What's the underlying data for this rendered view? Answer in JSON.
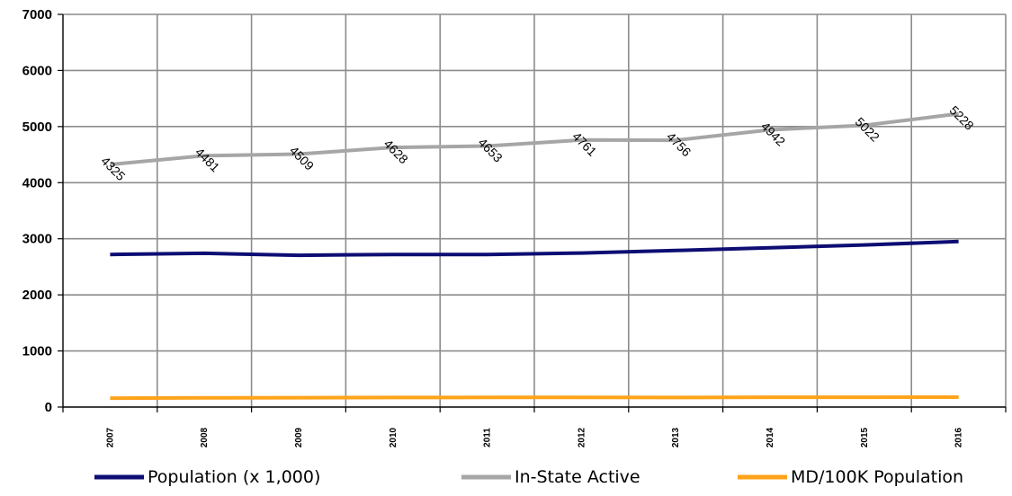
{
  "chart_data": {
    "type": "line",
    "title": "",
    "xlabel": "",
    "ylabel": "",
    "x": [
      "2007",
      "2008",
      "2009",
      "2010",
      "2011",
      "2012",
      "2013",
      "2014",
      "2015",
      "2016"
    ],
    "ylim": [
      0,
      7000
    ],
    "yticks": [
      0,
      1000,
      2000,
      3000,
      4000,
      5000,
      6000,
      7000
    ],
    "grid": true,
    "legend_position": "bottom",
    "series": [
      {
        "name": "Population (x 1,000)",
        "color": "#0d0d73",
        "values": [
          2720,
          2740,
          2705,
          2720,
          2720,
          2745,
          2790,
          2840,
          2890,
          2950
        ],
        "data_labels": false
      },
      {
        "name": "In-State Active",
        "color": "#a6a6a6",
        "values": [
          4325,
          4481,
          4509,
          4628,
          4653,
          4761,
          4756,
          4942,
          5022,
          5228
        ],
        "data_labels": true
      },
      {
        "name": "MD/100K Population",
        "color": "#ffa31a",
        "values": [
          159,
          163,
          166,
          170,
          171,
          173,
          170,
          174,
          174,
          177
        ],
        "data_labels": false
      }
    ]
  }
}
